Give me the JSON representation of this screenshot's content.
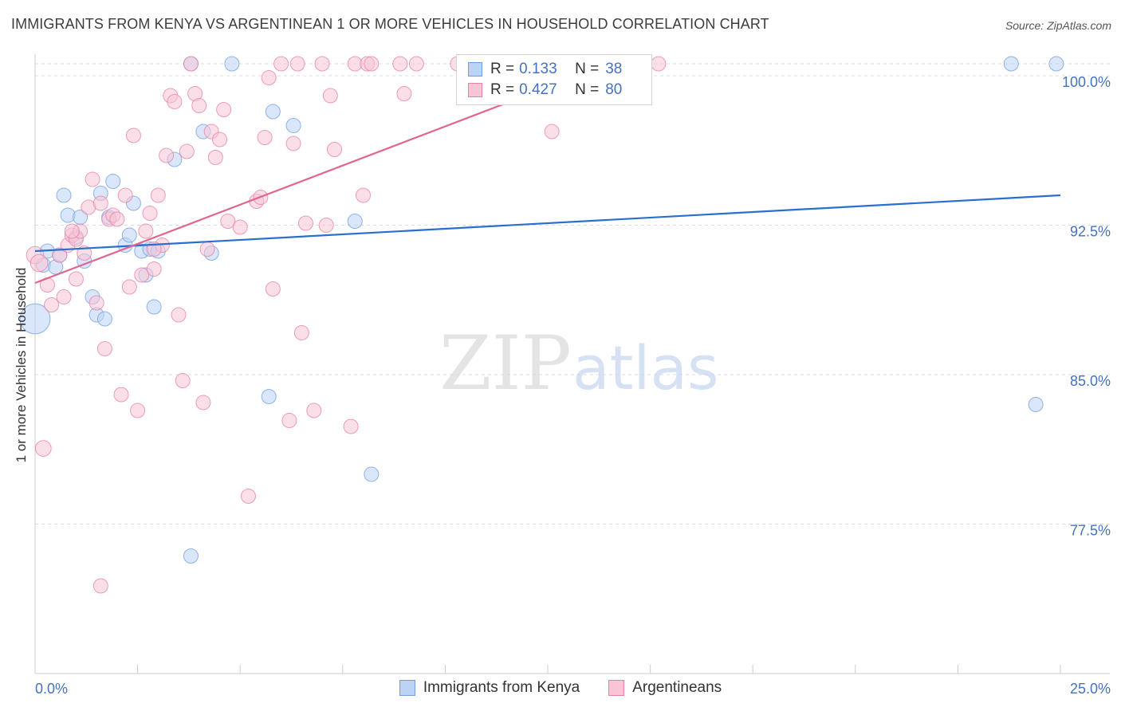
{
  "title": "IMMIGRANTS FROM KENYA VS ARGENTINEAN 1 OR MORE VEHICLES IN HOUSEHOLD CORRELATION CHART",
  "source": "Source: ZipAtlas.com",
  "watermark": {
    "zip": "ZIP",
    "atlas": "atlas"
  },
  "legend": {
    "rows": [
      {
        "r_label": "R =",
        "r_value": "0.133",
        "n_label": "N =",
        "n_value": "38"
      },
      {
        "r_label": "R =",
        "r_value": "0.427",
        "n_label": "N =",
        "n_value": "80"
      }
    ]
  },
  "bottom_legend": [
    "Immigrants from Kenya",
    "Argentineans"
  ],
  "chart_data": {
    "type": "scatter",
    "title": "IMMIGRANTS FROM KENYA VS ARGENTINEAN 1 OR MORE VEHICLES IN HOUSEHOLD CORRELATION CHART",
    "xlabel": "",
    "ylabel": "1 or more Vehicles in Household",
    "xlim": [
      0,
      25
    ],
    "ylim": [
      70,
      100.6
    ],
    "x_tick_labels": [
      "0.0%",
      "25.0%"
    ],
    "y_ticks": [
      77.5,
      85.0,
      92.5,
      100.0
    ],
    "y_tick_labels": [
      "77.5%",
      "85.0%",
      "92.5%",
      "100.0%"
    ],
    "grid": true,
    "colors": {
      "kenya": "#6f9ee0",
      "kenya_fill": "#bcd3f5",
      "arg": "#e87fa2",
      "arg_fill": "#f7c5d6",
      "kenya_line": "#2a6fd0",
      "arg_line": "#e06690",
      "tick_label": "#4472c4"
    },
    "series": [
      {
        "name": "Immigrants from Kenya",
        "trend": {
          "x0": 0.0,
          "y0": 91.2,
          "x1": 25.0,
          "y1": 94.0
        },
        "points": [
          [
            0.0,
            87.8,
            2.1
          ],
          [
            0.2,
            90.5,
            1.0
          ],
          [
            0.3,
            91.2,
            1.0
          ],
          [
            0.5,
            90.4,
            1.0
          ],
          [
            0.6,
            91.0,
            1.0
          ],
          [
            0.7,
            94.0,
            1.0
          ],
          [
            0.8,
            93.0,
            1.0
          ],
          [
            1.0,
            91.9,
            1.0
          ],
          [
            1.1,
            92.9,
            1.0
          ],
          [
            1.2,
            90.7,
            1.0
          ],
          [
            1.4,
            88.9,
            1.0
          ],
          [
            1.5,
            88.0,
            1.0
          ],
          [
            1.6,
            94.1,
            1.0
          ],
          [
            1.7,
            87.8,
            1.0
          ],
          [
            1.8,
            92.9,
            1.0
          ],
          [
            1.9,
            94.7,
            1.0
          ],
          [
            2.2,
            91.5,
            1.0
          ],
          [
            2.3,
            92.0,
            1.0
          ],
          [
            2.4,
            93.6,
            1.0
          ],
          [
            2.6,
            91.2,
            1.0
          ],
          [
            2.7,
            90.0,
            1.0
          ],
          [
            2.8,
            91.3,
            1.0
          ],
          [
            2.9,
            88.4,
            1.0
          ],
          [
            3.0,
            91.2,
            1.0
          ],
          [
            3.4,
            95.8,
            1.0
          ],
          [
            3.8,
            100.6,
            1.0
          ],
          [
            4.1,
            97.2,
            1.0
          ],
          [
            4.3,
            91.1,
            1.0
          ],
          [
            4.8,
            100.6,
            1.0
          ],
          [
            5.8,
            98.2,
            1.0
          ],
          [
            5.7,
            83.9,
            1.0
          ],
          [
            6.3,
            97.5,
            1.0
          ],
          [
            7.8,
            92.7,
            1.0
          ],
          [
            8.2,
            80.0,
            1.0
          ],
          [
            3.8,
            75.9,
            1.0
          ],
          [
            23.8,
            100.6,
            1.0
          ],
          [
            24.9,
            100.6,
            1.0
          ],
          [
            24.4,
            83.5,
            1.0
          ]
        ]
      },
      {
        "name": "Argentineans",
        "trend": {
          "x0": 0.0,
          "y0": 89.6,
          "x1": 14.0,
          "y1": 100.6
        },
        "points": [
          [
            0.0,
            91.0,
            1.2
          ],
          [
            0.1,
            90.6,
            1.2
          ],
          [
            0.2,
            81.3,
            1.1
          ],
          [
            0.3,
            89.5,
            1.0
          ],
          [
            0.4,
            88.5,
            1.0
          ],
          [
            0.6,
            91.0,
            1.0
          ],
          [
            0.7,
            88.9,
            1.0
          ],
          [
            0.8,
            91.5,
            1.0
          ],
          [
            0.9,
            92.0,
            1.0
          ],
          [
            1.0,
            91.8,
            1.0
          ],
          [
            1.0,
            89.8,
            1.0
          ],
          [
            1.1,
            92.2,
            1.0
          ],
          [
            1.2,
            91.1,
            1.0
          ],
          [
            1.3,
            93.4,
            1.0
          ],
          [
            1.4,
            94.8,
            1.0
          ],
          [
            1.5,
            88.6,
            1.0
          ],
          [
            1.6,
            93.6,
            1.0
          ],
          [
            1.7,
            86.3,
            1.0
          ],
          [
            1.8,
            92.8,
            1.0
          ],
          [
            1.9,
            93.0,
            1.0
          ],
          [
            2.0,
            92.8,
            1.0
          ],
          [
            2.1,
            84.0,
            1.0
          ],
          [
            2.2,
            94.0,
            1.0
          ],
          [
            2.3,
            89.4,
            1.0
          ],
          [
            2.4,
            97.0,
            1.0
          ],
          [
            2.5,
            83.2,
            1.0
          ],
          [
            2.6,
            90.0,
            1.0
          ],
          [
            2.7,
            92.2,
            1.0
          ],
          [
            2.8,
            93.1,
            1.0
          ],
          [
            2.9,
            90.3,
            1.0
          ],
          [
            3.0,
            94.0,
            1.0
          ],
          [
            3.1,
            91.5,
            1.0
          ],
          [
            3.2,
            96.0,
            1.0
          ],
          [
            3.3,
            99.0,
            1.0
          ],
          [
            3.4,
            98.7,
            1.0
          ],
          [
            3.5,
            88.0,
            1.0
          ],
          [
            3.6,
            84.7,
            1.0
          ],
          [
            3.7,
            96.2,
            1.0
          ],
          [
            3.8,
            100.6,
            1.0
          ],
          [
            3.9,
            99.1,
            1.0
          ],
          [
            4.0,
            98.5,
            1.0
          ],
          [
            4.1,
            83.6,
            1.0
          ],
          [
            4.2,
            91.3,
            1.0
          ],
          [
            4.3,
            97.2,
            1.0
          ],
          [
            4.4,
            95.9,
            1.0
          ],
          [
            4.5,
            96.8,
            1.0
          ],
          [
            4.6,
            98.3,
            1.0
          ],
          [
            4.7,
            92.7,
            1.0
          ],
          [
            5.0,
            92.4,
            1.0
          ],
          [
            5.2,
            78.9,
            1.0
          ],
          [
            5.4,
            93.7,
            1.0
          ],
          [
            5.5,
            93.9,
            1.0
          ],
          [
            5.6,
            96.9,
            1.0
          ],
          [
            5.7,
            99.9,
            1.0
          ],
          [
            5.8,
            89.3,
            1.0
          ],
          [
            6.0,
            100.6,
            1.0
          ],
          [
            6.2,
            82.7,
            1.0
          ],
          [
            6.3,
            96.6,
            1.0
          ],
          [
            6.4,
            100.6,
            1.0
          ],
          [
            6.5,
            87.1,
            1.0
          ],
          [
            6.6,
            92.6,
            1.0
          ],
          [
            6.8,
            83.2,
            1.0
          ],
          [
            7.0,
            100.6,
            1.0
          ],
          [
            7.1,
            92.5,
            1.0
          ],
          [
            7.2,
            99.0,
            1.0
          ],
          [
            7.3,
            96.3,
            1.0
          ],
          [
            7.7,
            82.4,
            1.0
          ],
          [
            7.8,
            100.6,
            1.0
          ],
          [
            8.0,
            94.0,
            1.0
          ],
          [
            8.1,
            100.6,
            1.0
          ],
          [
            8.2,
            100.6,
            1.0
          ],
          [
            8.9,
            100.6,
            1.0
          ],
          [
            9.0,
            99.1,
            1.0
          ],
          [
            9.3,
            100.6,
            1.0
          ],
          [
            1.6,
            74.4,
            1.0
          ],
          [
            12.6,
            97.2,
            1.0
          ],
          [
            15.2,
            100.6,
            1.0
          ],
          [
            10.3,
            100.6,
            1.0
          ],
          [
            2.9,
            91.3,
            1.0
          ],
          [
            0.9,
            92.2,
            1.0
          ]
        ]
      }
    ]
  }
}
